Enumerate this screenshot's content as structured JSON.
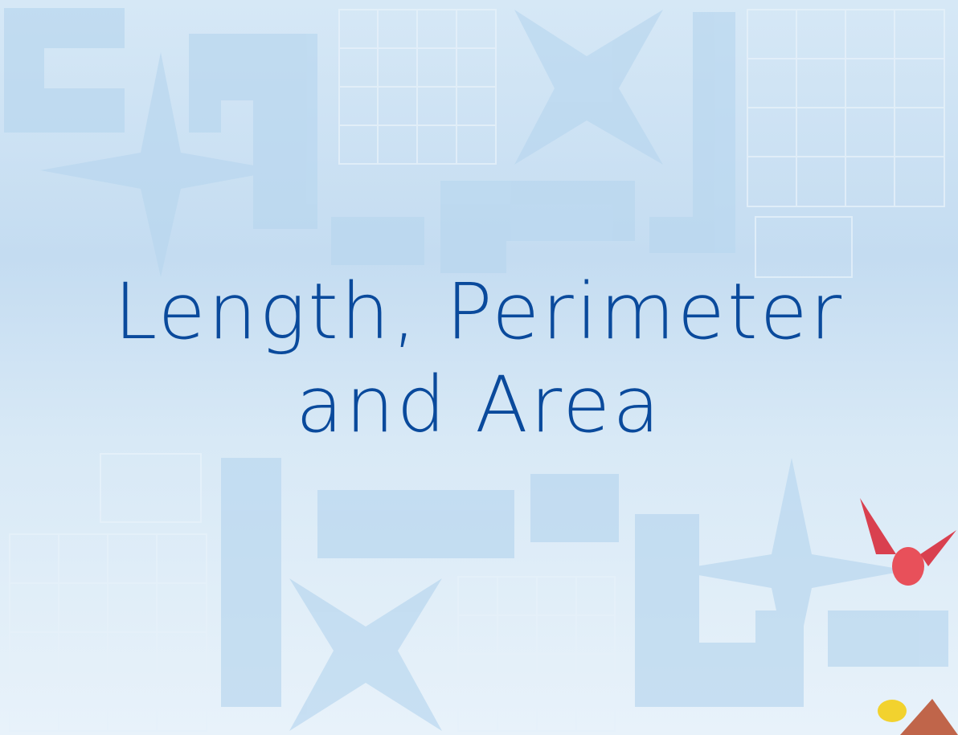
{
  "title": {
    "line1": "Length, Perimeter",
    "line2": "and Area"
  }
}
